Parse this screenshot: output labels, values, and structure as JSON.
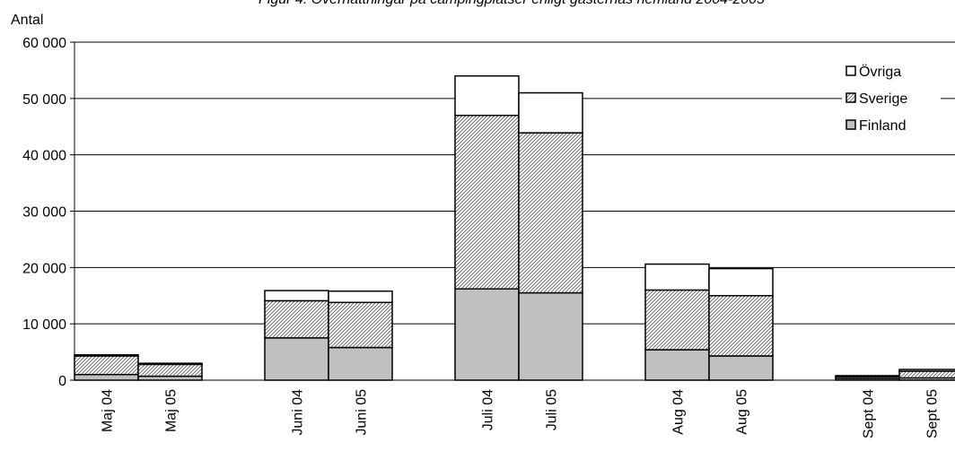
{
  "chart_data": {
    "type": "bar",
    "stacked": true,
    "title": "Figur 4. Övernattningar på campingplatser enligt gästernas hemland 2004-2005",
    "ylabel": "Antal",
    "xlabel": "",
    "ylim": [
      0,
      60000
    ],
    "yticks": [
      0,
      10000,
      20000,
      30000,
      40000,
      50000,
      60000
    ],
    "ytick_labels": [
      "0",
      "10 000",
      "20 000",
      "30 000",
      "40 000",
      "50 000",
      "60 000"
    ],
    "grid": true,
    "legend_position": "top-right",
    "categories": [
      "Maj 04",
      "Maj 05",
      "Juni 04",
      "Juni 05",
      "Juli 04",
      "Juli 05",
      "Aug 04",
      "Aug 05",
      "Sept 04",
      "Sept 05"
    ],
    "groups": [
      [
        0,
        1
      ],
      [
        2,
        3
      ],
      [
        4,
        5
      ],
      [
        6,
        7
      ],
      [
        8,
        9
      ]
    ],
    "series": [
      {
        "name": "Finland",
        "values": [
          1000,
          700,
          7500,
          5800,
          16200,
          15500,
          5400,
          4300,
          300,
          400
        ],
        "color": "#c0c0c0",
        "pattern": "solid"
      },
      {
        "name": "Sverige",
        "values": [
          3300,
          2100,
          6600,
          8000,
          30800,
          28400,
          10600,
          10700,
          300,
          1200
        ],
        "color": "#ffffff",
        "pattern": "diagonal-hatch"
      },
      {
        "name": "Övriga",
        "values": [
          200,
          200,
          1800,
          2000,
          7000,
          7100,
          4600,
          4800,
          200,
          300
        ],
        "color": "#ffffff",
        "pattern": "solid"
      }
    ],
    "legend_order": [
      "Övriga",
      "Sverige",
      "Finland"
    ]
  }
}
